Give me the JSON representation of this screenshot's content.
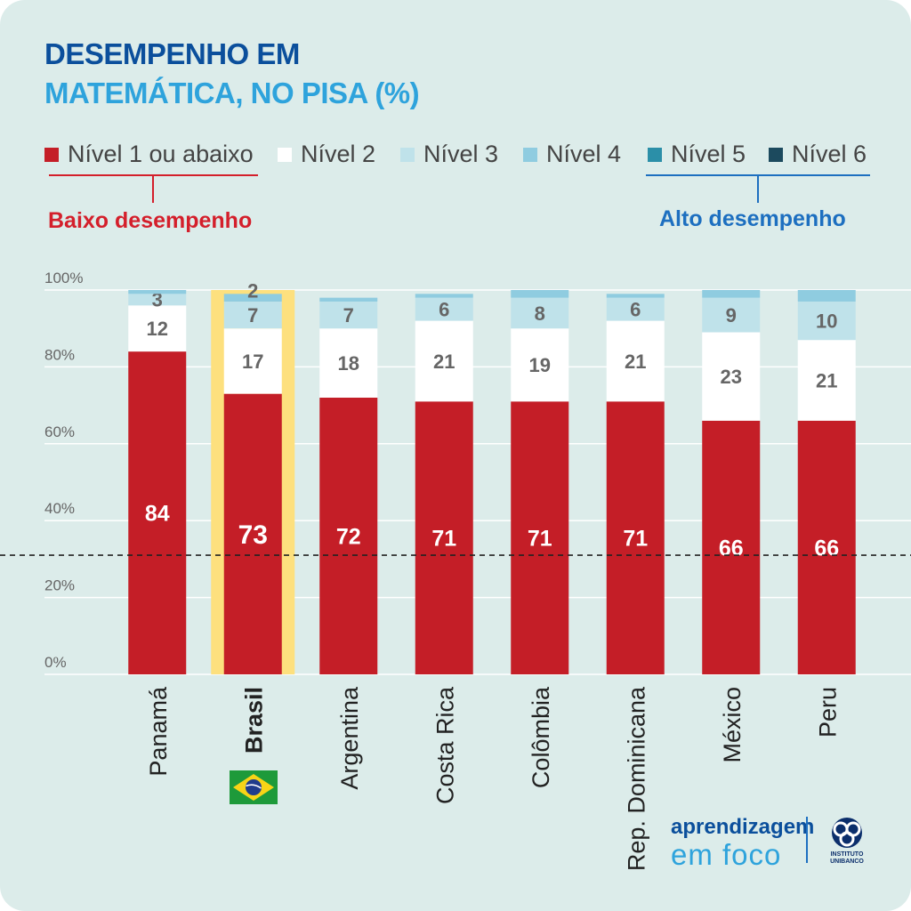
{
  "title": {
    "line1": "DESEMPENHO EM",
    "line2": "MATEMÁTICA, NO PISA (%)"
  },
  "legend": [
    {
      "label": "Nível 1 ou abaixo",
      "color": "#c41e27"
    },
    {
      "label": "Nível 2",
      "color": "#ffffff"
    },
    {
      "label": "Nível 3",
      "color": "#bfe2ea"
    },
    {
      "label": "Nível 4",
      "color": "#8fcce0"
    },
    {
      "label": "Nível 5",
      "color": "#2b8fa8"
    },
    {
      "label": "Nível 6",
      "color": "#1c4a5e"
    }
  ],
  "groups": {
    "low": "Baixo desempenho",
    "high": "Alto desempenho"
  },
  "brand": {
    "line1": "aprendizagem",
    "line2": "em foco",
    "logo_text": "INSTITUTO UNIBANCO"
  },
  "chart_data": {
    "type": "bar",
    "stacked": true,
    "categories": [
      "Panamá",
      "Brasil",
      "Argentina",
      "Costa Rica",
      "Colômbia",
      "Rep. Dominicana",
      "México",
      "Peru"
    ],
    "highlight": "Brasil",
    "series": [
      {
        "name": "Nível 1 ou abaixo",
        "values": [
          84,
          73,
          72,
          71,
          71,
          71,
          66,
          66
        ],
        "color": "#c41e27"
      },
      {
        "name": "Nível 2",
        "values": [
          12,
          17,
          18,
          21,
          19,
          21,
          23,
          21
        ],
        "color": "#ffffff"
      },
      {
        "name": "Nível 3",
        "values": [
          3,
          7,
          7,
          6,
          8,
          6,
          9,
          10
        ],
        "color": "#bfe2ea"
      },
      {
        "name": "Nível 4",
        "values": [
          1,
          2,
          1,
          1,
          2,
          1,
          2,
          3
        ],
        "color": "#8fcce0"
      },
      {
        "name": "Nível 5",
        "values": [
          0,
          0,
          0,
          0,
          0,
          0,
          0,
          0
        ],
        "color": "#2b8fa8"
      },
      {
        "name": "Nível 6",
        "values": [
          0,
          0,
          0,
          0,
          0,
          0,
          0,
          0
        ],
        "color": "#1c4a5e"
      }
    ],
    "data_labels": [
      [
        "84",
        "12",
        "3",
        ""
      ],
      [
        "73",
        "17",
        "7",
        "2"
      ],
      [
        "72",
        "18",
        "7",
        ""
      ],
      [
        "71",
        "21",
        "6",
        ""
      ],
      [
        "71",
        "19",
        "8",
        ""
      ],
      [
        "71",
        "21",
        "6",
        ""
      ],
      [
        "66",
        "23",
        "9",
        ""
      ],
      [
        "66",
        "21",
        "10",
        ""
      ]
    ],
    "yticks": [
      "0%",
      "20%",
      "40%",
      "60%",
      "80%",
      "100%"
    ],
    "ylim": [
      0,
      100
    ],
    "reference_line": 31,
    "grid": true
  }
}
